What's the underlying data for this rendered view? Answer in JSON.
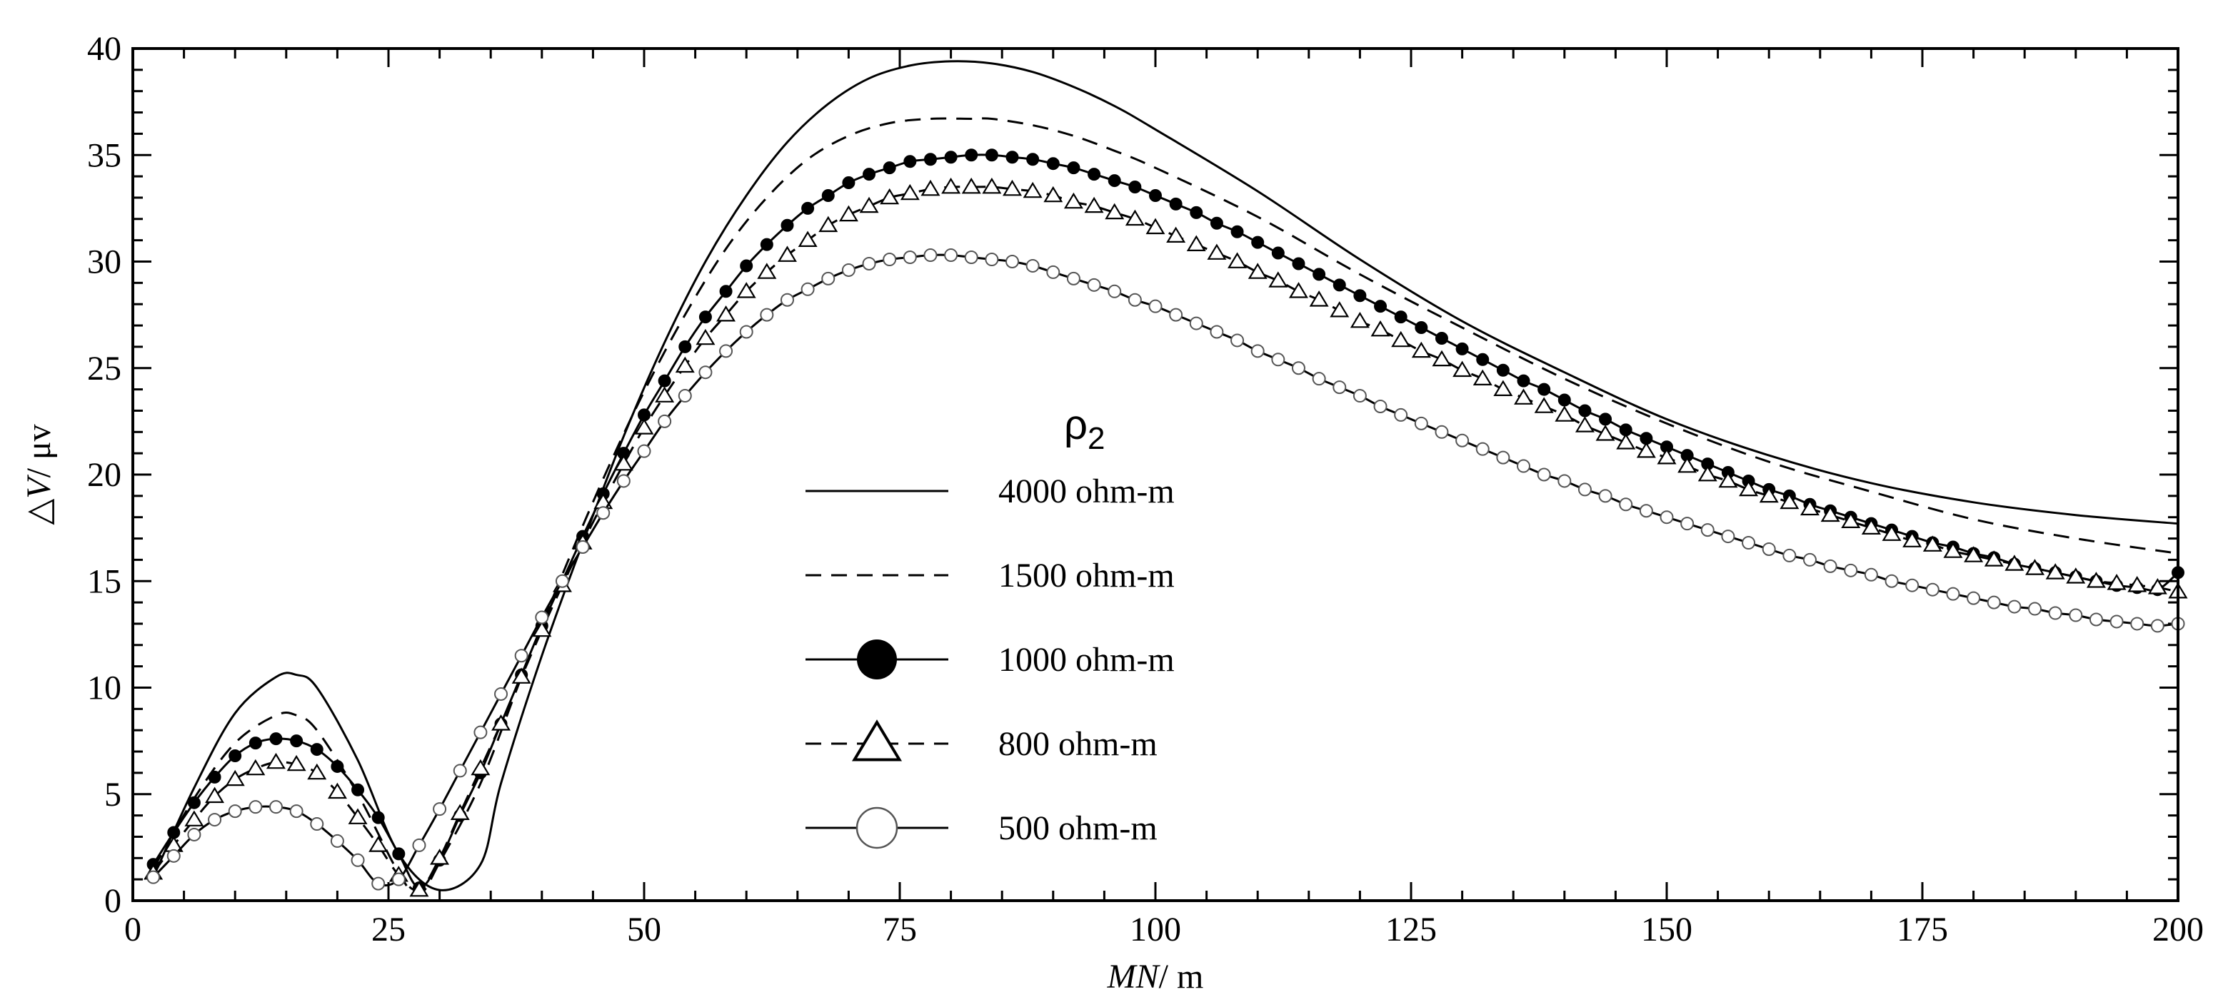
{
  "chart_data": {
    "type": "line",
    "title": "",
    "xlabel_italic": "MN",
    "xlabel_unit": "/ m",
    "ylabel_italic": "V",
    "ylabel_prefix": "△",
    "ylabel_unit": "/ μv",
    "xlim": [
      0,
      200
    ],
    "ylim": [
      0,
      40
    ],
    "xticks": [
      0,
      25,
      50,
      75,
      100,
      125,
      150,
      175,
      200
    ],
    "yticks": [
      0,
      5,
      10,
      15,
      20,
      25,
      30,
      35,
      40
    ],
    "xtick_labels": [
      "0",
      "25",
      "50",
      "75",
      "100",
      "125",
      "150",
      "175",
      "200"
    ],
    "ytick_labels": [
      "0",
      "5",
      "10",
      "15",
      "20",
      "25",
      "30",
      "35",
      "40"
    ],
    "legend_title_symbol": "ρ",
    "legend_title_sub": "2",
    "legend_position": "center",
    "series": [
      {
        "name": "4000 ohm-m",
        "line": "solid",
        "marker": "none",
        "x": [
          2,
          6,
          10,
          14,
          16,
          18,
          22,
          26,
          30,
          34,
          36,
          40,
          44,
          48,
          52,
          56,
          60,
          64,
          68,
          72,
          76,
          80,
          84,
          88,
          92,
          96,
          100,
          110,
          120,
          130,
          140,
          150,
          160,
          170,
          180,
          190,
          200
        ],
        "y": [
          1.1,
          5.3,
          8.8,
          10.5,
          10.6,
          10.0,
          6.6,
          2.2,
          0.5,
          1.7,
          5.5,
          11.5,
          16.8,
          21.8,
          26.2,
          30.0,
          33.1,
          35.6,
          37.4,
          38.6,
          39.2,
          39.4,
          39.3,
          38.9,
          38.2,
          37.3,
          36.2,
          33.3,
          30.1,
          27.2,
          24.8,
          22.6,
          20.9,
          19.6,
          18.7,
          18.1,
          17.7
        ]
      },
      {
        "name": "1500 ohm-m",
        "line": "dashed",
        "marker": "none",
        "x": [
          2,
          6,
          10,
          14,
          16,
          18,
          22,
          26,
          28,
          30,
          34,
          38,
          42,
          46,
          50,
          54,
          58,
          62,
          66,
          70,
          74,
          78,
          82,
          84,
          88,
          92,
          96,
          100,
          110,
          120,
          130,
          140,
          150,
          160,
          170,
          180,
          190,
          200
        ],
        "y": [
          1.5,
          4.8,
          7.4,
          8.7,
          8.7,
          8.0,
          5.0,
          1.3,
          0.3,
          1.8,
          5.5,
          10.5,
          15.3,
          19.8,
          23.9,
          27.5,
          30.6,
          33.0,
          34.8,
          35.9,
          36.5,
          36.7,
          36.7,
          36.7,
          36.4,
          35.9,
          35.2,
          34.4,
          32.1,
          29.4,
          26.9,
          24.5,
          22.4,
          20.6,
          19.2,
          17.9,
          17.0,
          16.3
        ]
      },
      {
        "name": "1000 ohm-m",
        "line": "solid",
        "marker": "filled-circle",
        "x": [
          2,
          4,
          6,
          8,
          10,
          12,
          14,
          16,
          18,
          20,
          22,
          24,
          26,
          28,
          30,
          32,
          34,
          36,
          38,
          40,
          42,
          44,
          46,
          48,
          50,
          52,
          54,
          56,
          58,
          60,
          62,
          64,
          66,
          68,
          70,
          72,
          74,
          76,
          78,
          80,
          82,
          84,
          86,
          88,
          90,
          92,
          94,
          96,
          98,
          100,
          102,
          104,
          106,
          108,
          110,
          112,
          114,
          116,
          118,
          120,
          122,
          124,
          126,
          128,
          130,
          132,
          134,
          136,
          138,
          140,
          142,
          144,
          146,
          148,
          150,
          152,
          154,
          156,
          158,
          160,
          162,
          164,
          166,
          168,
          170,
          172,
          174,
          176,
          178,
          180,
          182,
          184,
          186,
          188,
          190,
          192,
          194,
          196,
          198,
          200
        ],
        "y": [
          1.7,
          3.2,
          4.6,
          5.8,
          6.8,
          7.4,
          7.6,
          7.5,
          7.1,
          6.3,
          5.2,
          3.9,
          2.2,
          0.6,
          1.9,
          4.0,
          6.0,
          8.3,
          10.6,
          12.9,
          15.0,
          17.1,
          19.1,
          21.0,
          22.8,
          24.4,
          26.0,
          27.4,
          28.6,
          29.8,
          30.8,
          31.7,
          32.5,
          33.1,
          33.7,
          34.1,
          34.4,
          34.7,
          34.8,
          34.9,
          35.0,
          35.0,
          34.9,
          34.8,
          34.6,
          34.4,
          34.1,
          33.8,
          33.5,
          33.1,
          32.7,
          32.3,
          31.8,
          31.4,
          30.9,
          30.4,
          29.9,
          29.4,
          28.9,
          28.4,
          27.9,
          27.4,
          26.9,
          26.4,
          25.9,
          25.4,
          24.9,
          24.4,
          24.0,
          23.5,
          23.0,
          22.6,
          22.1,
          21.7,
          21.3,
          20.9,
          20.5,
          20.1,
          19.7,
          19.3,
          19.0,
          18.6,
          18.3,
          18.0,
          17.7,
          17.4,
          17.1,
          16.8,
          16.6,
          16.3,
          16.1,
          15.8,
          15.6,
          15.4,
          15.2,
          15.0,
          14.8,
          14.7,
          14.6,
          15.4
        ]
      },
      {
        "name": "800 ohm-m",
        "line": "dashed",
        "marker": "open-triangle",
        "x": [
          2,
          4,
          6,
          8,
          10,
          12,
          14,
          16,
          18,
          20,
          22,
          24,
          26,
          28,
          30,
          32,
          34,
          36,
          38,
          40,
          42,
          44,
          46,
          48,
          50,
          52,
          54,
          56,
          58,
          60,
          62,
          64,
          66,
          68,
          70,
          72,
          74,
          76,
          78,
          80,
          82,
          84,
          86,
          88,
          90,
          92,
          94,
          96,
          98,
          100,
          102,
          104,
          106,
          108,
          110,
          112,
          114,
          116,
          118,
          120,
          122,
          124,
          126,
          128,
          130,
          132,
          134,
          136,
          138,
          140,
          142,
          144,
          146,
          148,
          150,
          152,
          154,
          156,
          158,
          160,
          162,
          164,
          166,
          168,
          170,
          172,
          174,
          176,
          178,
          180,
          182,
          184,
          186,
          188,
          190,
          192,
          194,
          196,
          198,
          200
        ],
        "y": [
          1.3,
          2.6,
          3.8,
          4.9,
          5.7,
          6.2,
          6.5,
          6.4,
          6.0,
          5.1,
          3.9,
          2.6,
          1.2,
          0.5,
          2.0,
          4.1,
          6.2,
          8.3,
          10.5,
          12.7,
          14.8,
          16.8,
          18.7,
          20.5,
          22.2,
          23.7,
          25.1,
          26.4,
          27.5,
          28.6,
          29.5,
          30.3,
          31.0,
          31.7,
          32.2,
          32.6,
          33.0,
          33.2,
          33.4,
          33.5,
          33.5,
          33.5,
          33.4,
          33.3,
          33.1,
          32.8,
          32.6,
          32.3,
          32.0,
          31.6,
          31.2,
          30.8,
          30.4,
          30.0,
          29.5,
          29.1,
          28.6,
          28.2,
          27.7,
          27.2,
          26.8,
          26.3,
          25.8,
          25.4,
          24.9,
          24.5,
          24.0,
          23.6,
          23.2,
          22.8,
          22.3,
          21.9,
          21.5,
          21.1,
          20.8,
          20.4,
          20.0,
          19.7,
          19.3,
          19.0,
          18.7,
          18.4,
          18.1,
          17.8,
          17.5,
          17.2,
          16.9,
          16.7,
          16.4,
          16.2,
          16.0,
          15.8,
          15.6,
          15.4,
          15.2,
          15.0,
          14.9,
          14.8,
          14.7,
          14.5
        ]
      },
      {
        "name": "500 ohm-m",
        "line": "solid",
        "marker": "open-circle",
        "x": [
          2,
          4,
          6,
          8,
          10,
          12,
          14,
          16,
          18,
          20,
          22,
          24,
          26,
          28,
          30,
          32,
          34,
          36,
          38,
          40,
          42,
          44,
          46,
          48,
          50,
          52,
          54,
          56,
          58,
          60,
          62,
          64,
          66,
          68,
          70,
          72,
          74,
          76,
          78,
          80,
          82,
          84,
          86,
          88,
          90,
          92,
          94,
          96,
          98,
          100,
          102,
          104,
          106,
          108,
          110,
          112,
          114,
          116,
          118,
          120,
          122,
          124,
          126,
          128,
          130,
          132,
          134,
          136,
          138,
          140,
          142,
          144,
          146,
          148,
          150,
          152,
          154,
          156,
          158,
          160,
          162,
          164,
          166,
          168,
          170,
          172,
          174,
          176,
          178,
          180,
          182,
          184,
          186,
          188,
          190,
          192,
          194,
          196,
          198,
          200
        ],
        "y": [
          1.1,
          2.1,
          3.1,
          3.8,
          4.2,
          4.4,
          4.4,
          4.2,
          3.6,
          2.8,
          1.9,
          0.8,
          1.0,
          2.6,
          4.3,
          6.1,
          7.9,
          9.7,
          11.5,
          13.3,
          15.0,
          16.6,
          18.2,
          19.7,
          21.1,
          22.5,
          23.7,
          24.8,
          25.8,
          26.7,
          27.5,
          28.2,
          28.7,
          29.2,
          29.6,
          29.9,
          30.1,
          30.2,
          30.3,
          30.3,
          30.2,
          30.1,
          30.0,
          29.8,
          29.5,
          29.2,
          28.9,
          28.6,
          28.2,
          27.9,
          27.5,
          27.1,
          26.7,
          26.3,
          25.8,
          25.4,
          25.0,
          24.5,
          24.1,
          23.7,
          23.2,
          22.8,
          22.4,
          22.0,
          21.6,
          21.2,
          20.8,
          20.4,
          20.0,
          19.7,
          19.3,
          19.0,
          18.6,
          18.3,
          18.0,
          17.7,
          17.4,
          17.1,
          16.8,
          16.5,
          16.2,
          16.0,
          15.7,
          15.5,
          15.3,
          15.0,
          14.8,
          14.6,
          14.4,
          14.2,
          14.0,
          13.8,
          13.7,
          13.5,
          13.4,
          13.2,
          13.1,
          13.0,
          12.9,
          13.0
        ]
      }
    ]
  }
}
